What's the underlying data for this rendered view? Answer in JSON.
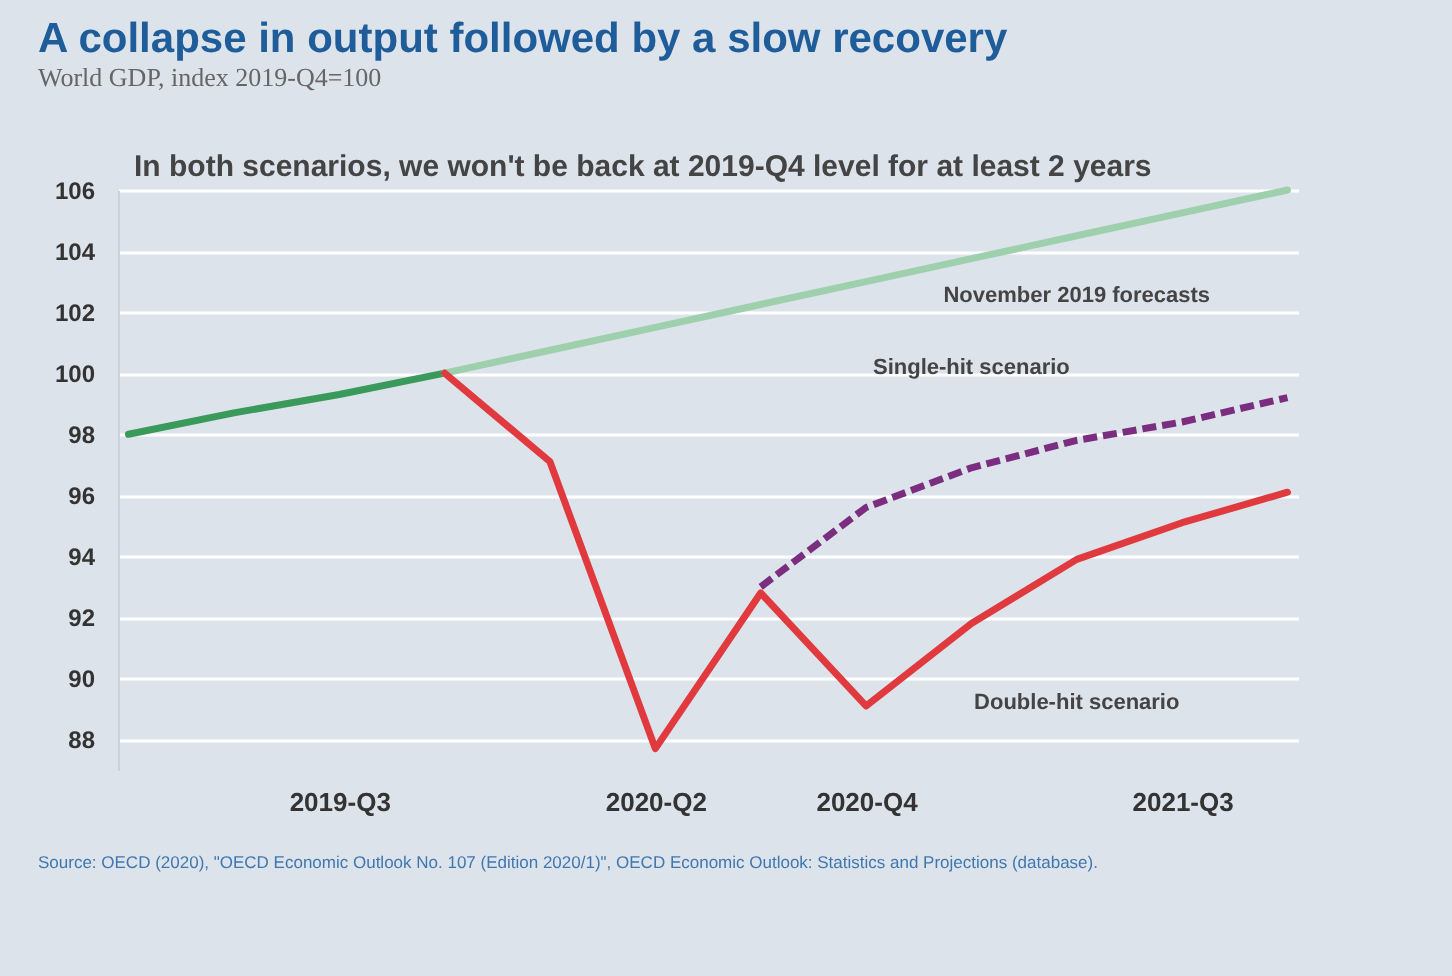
{
  "chart_data": {
    "type": "line",
    "title": "A collapse in output followed by a slow recovery",
    "subtitle": "World GDP, index 2019-Q4=100",
    "categories": [
      null,
      null,
      "2019-Q3",
      null,
      null,
      "2020-Q2",
      null,
      "2020-Q4",
      null,
      null,
      "2021-Q3",
      null
    ],
    "series": [
      {
        "color": "#3a9a5c",
        "line_style": "solid",
        "values": [
          98,
          98.7,
          99.3,
          100,
          null,
          null,
          null,
          null,
          null,
          null,
          null,
          null
        ]
      },
      {
        "name": "November 2019 forecasts",
        "color": "#9fd0ae",
        "line_style": "solid",
        "values": [
          null,
          null,
          null,
          100,
          100.75,
          101.5,
          102.25,
          103,
          103.75,
          104.5,
          105.25,
          106
        ]
      },
      {
        "name": "Single-hit scenario",
        "color": "#7b2d7f",
        "line_style": "dashed",
        "values": [
          null,
          null,
          null,
          null,
          null,
          null,
          93,
          95.6,
          96.9,
          97.8,
          98.4,
          99.2
        ]
      },
      {
        "name": "Double-hit scenario",
        "color": "#e0393e",
        "line_style": "solid",
        "values": [
          null,
          null,
          null,
          100,
          97.1,
          87.7,
          92.8,
          89.1,
          91.8,
          93.9,
          95.1,
          96.1
        ]
      }
    ],
    "ylim": [
      87,
      106
    ],
    "yticks": [
      88,
      90,
      92,
      94,
      96,
      98,
      100,
      102,
      104,
      106
    ],
    "grid": "y",
    "annotations": [
      "In both scenarios, we won't be back at 2019-Q4 level for at least 2 years",
      "Source: OECD (2020), \"OECD Economic Outlook No. 107 (Edition 2020/1)\", OECD Economic Outlook: Statistics and Projections (database)."
    ]
  }
}
